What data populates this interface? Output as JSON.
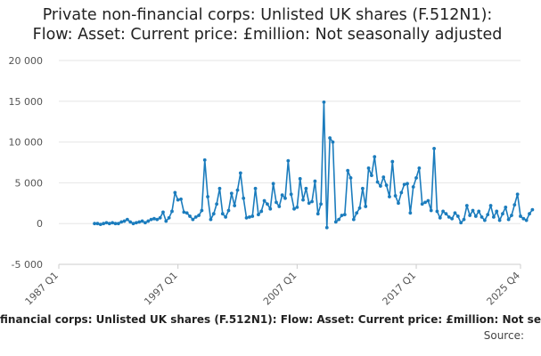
{
  "header": {
    "title_line1": "Private non-financial corps: Unlisted UK shares (F.512N1):",
    "title_line2": "Flow: Asset: Current price: £million: Not seasonally adjusted"
  },
  "footer": {
    "caption": "financial corps: Unlisted UK shares (F.512N1): Flow: Asset: Current price: £million: Not se",
    "source": "Source:"
  },
  "colors": {
    "series": "#1b7cbd",
    "grid": "#e6e6e6",
    "axis": "#cccccc"
  },
  "chart_data": {
    "type": "line",
    "title": "Private non-financial corps: Unlisted UK shares (F.512N1): Flow: Asset: Current price: £million: Not seasonally adjusted",
    "xlabel": "",
    "ylabel": "",
    "ylim": [
      -5000,
      20000
    ],
    "yticks": [
      -5000,
      0,
      5000,
      10000,
      15000,
      20000
    ],
    "ytick_labels": [
      "-5 000",
      "0",
      "5 000",
      "10 000",
      "15 000",
      "20 000"
    ],
    "xlim": [
      "1987 Q1",
      "2025 Q4"
    ],
    "xtick_labels": [
      "1987 Q1",
      "1997 Q1",
      "2007 Q1",
      "2017 Q1",
      "2025 Q4"
    ],
    "grid": true,
    "series": [
      {
        "start": "1990 Q1",
        "values": [
          0,
          0,
          -100,
          0,
          100,
          0,
          100,
          0,
          0,
          200,
          300,
          500,
          200,
          0,
          100,
          200,
          300,
          100,
          300,
          500,
          600,
          500,
          700,
          1400,
          300,
          700,
          1500,
          3800,
          2900,
          3000,
          1400,
          1300,
          900,
          500,
          800,
          1000,
          1600,
          7800,
          3300,
          500,
          1200,
          2400,
          4300,
          1200,
          800,
          1600,
          3700,
          2200,
          4100,
          6200,
          3100,
          700,
          800,
          900,
          4300,
          1100,
          1500,
          2800,
          2400,
          1800,
          4900,
          2600,
          2100,
          3500,
          3100,
          7700,
          3600,
          1800,
          2000,
          5500,
          2900,
          4300,
          2500,
          2700,
          5200,
          1200,
          2400,
          14900,
          -500,
          10500,
          10000,
          200,
          500,
          1000,
          1100,
          6500,
          5600,
          500,
          1300,
          1900,
          4300,
          2100,
          6800,
          5900,
          8200,
          5100,
          4600,
          5700,
          4700,
          3300,
          7600,
          3400,
          2500,
          3800,
          4800,
          4900,
          1300,
          4500,
          5600,
          6800,
          2400,
          2600,
          2800,
          1600,
          9200,
          1500,
          700,
          1500,
          1200,
          800,
          600,
          1300,
          900,
          100,
          500,
          2200,
          1000,
          1600,
          900,
          1500,
          800,
          400,
          1100,
          2200,
          800,
          1500,
          400,
          1200,
          2000,
          500,
          1000,
          2300,
          3600,
          900,
          600,
          400,
          1200,
          1700
        ]
      }
    ]
  }
}
